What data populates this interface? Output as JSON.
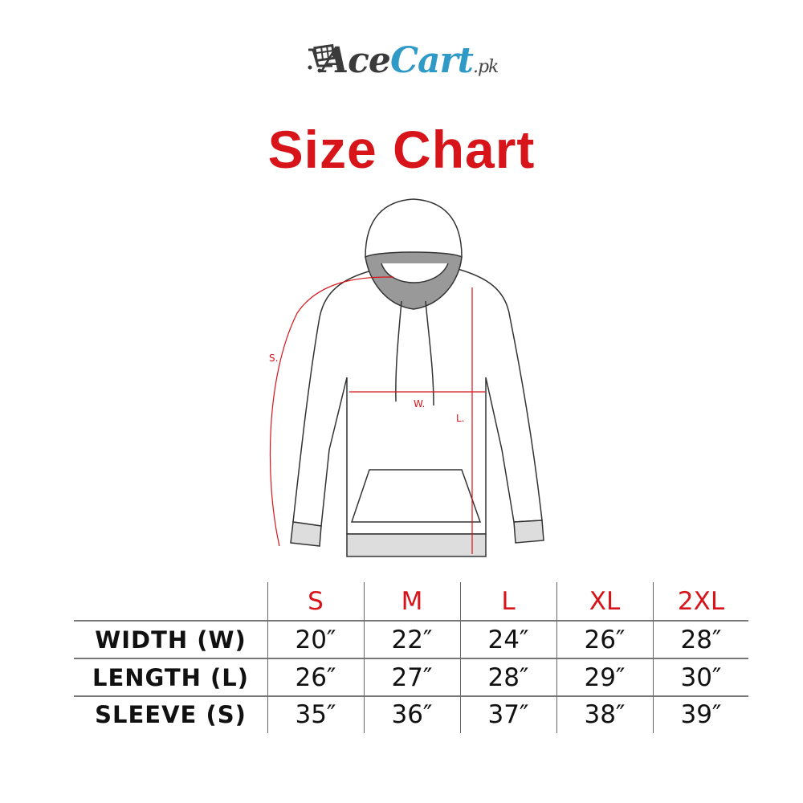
{
  "logo": {
    "part1": "Ace",
    "part2": "Cart",
    "suffix": ".pk"
  },
  "title": "Size Chart",
  "diagram": {
    "sleeve_label": "S.",
    "width_label": "W.",
    "length_label": "L."
  },
  "colors": {
    "accent": "#d7141a",
    "brand_blue": "#2f9ac6",
    "brand_dark": "#3a3a3a"
  },
  "table": {
    "sizes": [
      "S",
      "M",
      "L",
      "XL",
      "2XL"
    ],
    "rows": [
      {
        "label": "WIDTH (W)",
        "values": [
          "20″",
          "22″",
          "24″",
          "26″",
          "28″"
        ]
      },
      {
        "label": "LENGTH (L)",
        "values": [
          "26″",
          "27″",
          "28″",
          "29″",
          "30″"
        ]
      },
      {
        "label": "SLEEVE (S)",
        "values": [
          "35″",
          "36″",
          "37″",
          "38″",
          "39″"
        ]
      }
    ]
  }
}
